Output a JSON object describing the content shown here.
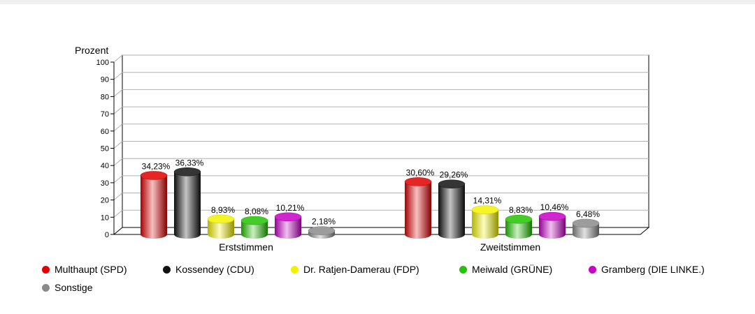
{
  "chart_data": {
    "type": "bar",
    "title": "",
    "ylabel": "Prozent",
    "xlabel": "",
    "ylim": [
      0,
      100
    ],
    "yticks": [
      0,
      10,
      20,
      30,
      40,
      50,
      60,
      70,
      80,
      90,
      100
    ],
    "grid": true,
    "legend_position": "bottom",
    "categories": [
      "Erststimmen",
      "Zweitstimmen"
    ],
    "series": [
      {
        "name": "Multhaupt  (SPD)",
        "color": "#e00000",
        "values": [
          34.23,
          30.6
        ],
        "labels": [
          "34,23%",
          "30,60%"
        ]
      },
      {
        "name": "Kossendey (CDU)",
        "color": "#111111",
        "values": [
          36.33,
          29.26
        ],
        "labels": [
          "36,33%",
          "29,26%"
        ]
      },
      {
        "name": "Dr. Ratjen-Damerau (FDP)",
        "color": "#f2f200",
        "values": [
          8.93,
          14.31
        ],
        "labels": [
          "8,93%",
          "14,31%"
        ]
      },
      {
        "name": "Meiwald (GRÜNE)",
        "color": "#22c400",
        "values": [
          8.08,
          8.83
        ],
        "labels": [
          "8,08%",
          "8,83%"
        ]
      },
      {
        "name": "Gramberg (DIE LINKE.)",
        "color": "#c800c8",
        "values": [
          10.21,
          10.46
        ],
        "labels": [
          "10,21%",
          "10,46%"
        ]
      },
      {
        "name": "Sonstige",
        "color": "#8a8a8a",
        "values": [
          2.18,
          6.48
        ],
        "labels": [
          "2,18%",
          "6,48%"
        ]
      }
    ]
  }
}
